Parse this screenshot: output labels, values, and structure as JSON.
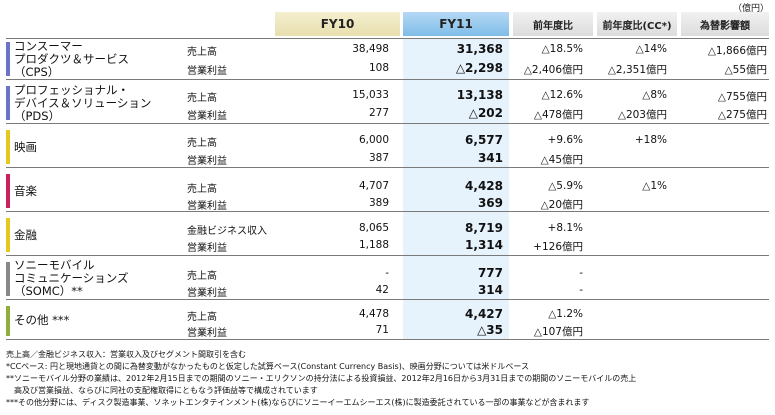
{
  "unit": "（億円）",
  "headers": {
    "fy10": "FY10",
    "fy11": "FY11",
    "yoy": "前年度比",
    "yoy_cc": "前年度比(CC*)",
    "fx": "為替影響額"
  },
  "bar_colors": {
    "cps": "#6b74c6",
    "pds": "#6b74c6",
    "movie": "#e5c81e",
    "music": "#c8215d",
    "finance": "#e5c81e",
    "somc": "#888888",
    "other": "#8fae3c"
  },
  "segments": {
    "cps": {
      "name_l1": "コンスーマー",
      "name_l2": "プロダクツ＆サービス",
      "name_l3": "（CPS）",
      "rows": [
        {
          "label": "売上高",
          "fy10": "38,498",
          "fy11": "31,368",
          "yoy": "△18.5%",
          "yoy_cc": "△14%",
          "fx": "△1,866億円"
        },
        {
          "label": "営業利益",
          "fy10": "108",
          "fy11": "△2,298",
          "yoy": "△2,406億円",
          "yoy_cc": "△2,351億円",
          "fx": "△55億円"
        }
      ]
    },
    "pds": {
      "name_l1": "プロフェッショナル・",
      "name_l2": "デバイス＆ソリューション",
      "name_l3": "（PDS）",
      "rows": [
        {
          "label": "売上高",
          "fy10": "15,033",
          "fy11": "13,138",
          "yoy": "△12.6%",
          "yoy_cc": "△8%",
          "fx": "△755億円"
        },
        {
          "label": "営業利益",
          "fy10": "277",
          "fy11": "△202",
          "yoy": "△478億円",
          "yoy_cc": "△203億円",
          "fx": "△275億円"
        }
      ]
    },
    "movie": {
      "name_l1": "映画",
      "rows": [
        {
          "label": "売上高",
          "fy10": "6,000",
          "fy11": "6,577",
          "yoy": "+9.6%",
          "yoy_cc": "+18%",
          "fx": ""
        },
        {
          "label": "営業利益",
          "fy10": "387",
          "fy11": "341",
          "yoy": "△45億円",
          "yoy_cc": "",
          "fx": ""
        }
      ]
    },
    "music": {
      "name_l1": "音楽",
      "rows": [
        {
          "label": "売上高",
          "fy10": "4,707",
          "fy11": "4,428",
          "yoy": "△5.9%",
          "yoy_cc": "△1%",
          "fx": ""
        },
        {
          "label": "営業利益",
          "fy10": "389",
          "fy11": "369",
          "yoy": "△20億円",
          "yoy_cc": "",
          "fx": ""
        }
      ]
    },
    "finance": {
      "name_l1": "金融",
      "rows": [
        {
          "label": "金融ビジネス収入",
          "fy10": "8,065",
          "fy11": "8,719",
          "yoy": "+8.1%",
          "yoy_cc": "",
          "fx": ""
        },
        {
          "label": "営業利益",
          "fy10": "1,188",
          "fy11": "1,314",
          "yoy": "+126億円",
          "yoy_cc": "",
          "fx": ""
        }
      ]
    },
    "somc": {
      "name_l1": "ソニーモバイル",
      "name_l2": "コミュニケーションズ",
      "name_l3": "（SOMC）**",
      "rows": [
        {
          "label": "売上高",
          "fy10": "-",
          "fy11": "777",
          "yoy": "-",
          "yoy_cc": "",
          "fx": ""
        },
        {
          "label": "営業利益",
          "fy10": "42",
          "fy11": "314",
          "yoy": "-",
          "yoy_cc": "",
          "fx": ""
        }
      ]
    },
    "other": {
      "name_l1": "その他 ***",
      "rows": [
        {
          "label": "売上高",
          "fy10": "4,478",
          "fy11": "4,427",
          "yoy": "△1.2%",
          "yoy_cc": "",
          "fx": ""
        },
        {
          "label": "営業利益",
          "fy10": "71",
          "fy11": "△35",
          "yoy": "△107億円",
          "yoy_cc": "",
          "fx": ""
        }
      ]
    }
  },
  "notes": [
    "売上高／金融ビジネス収入：営業収入及びセグメント間取引を含む",
    "*CCベース: 円と現地通貨との間に為替変動がなかったものと仮定した試算ベース(Constant Currency Basis)、映画分野については米ドルベース",
    "**ソニーモバイル分野の業績は、2012年2月15日までの期間のソニー・エリクソンの持分法による投資損益、2012年2月16日から3月31日までの期間のソニーモバイルの売上",
    "　高及び営業損益、ならびに同社の支配権取得にともなう評価益等で構成されています",
    "***その他分野には、ディスク製造事業、ソネットエンタテインメント(株)ならびにソニーイーエムシーエス(株)に製造委託されている一部の事業などが含まれます"
  ]
}
